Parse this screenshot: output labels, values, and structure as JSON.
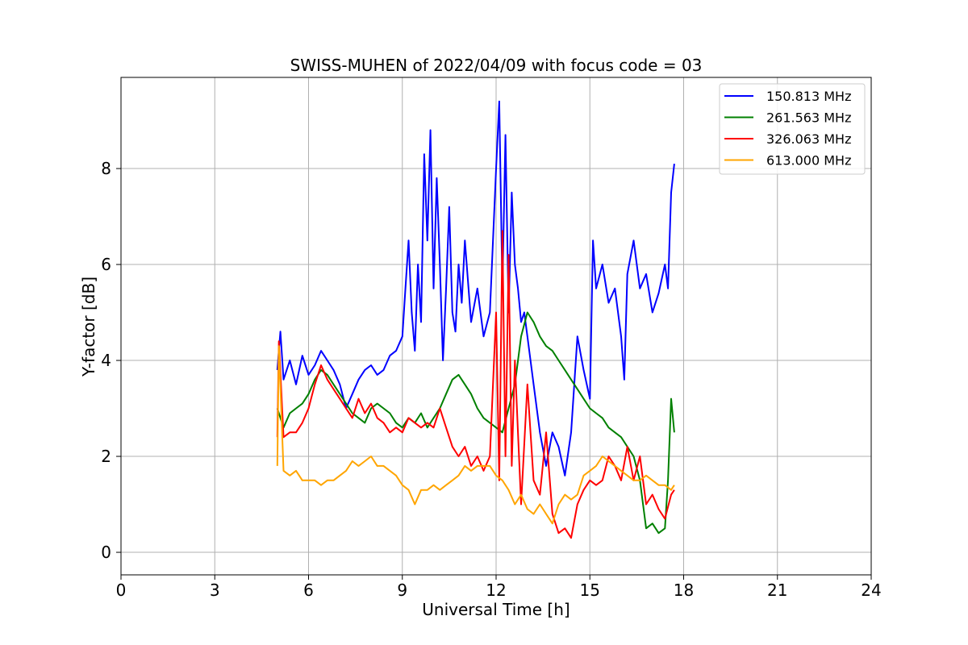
{
  "chart_data": {
    "type": "line",
    "title": "SWISS-MUHEN of 2022/04/09 with focus code = 03",
    "xlabel": "Universal Time [h]",
    "ylabel": "Y-factor [dB]",
    "xlim": [
      0,
      24
    ],
    "ylim": [
      -0.47,
      9.9
    ],
    "xticks": [
      0,
      3,
      6,
      9,
      12,
      15,
      18,
      21,
      24
    ],
    "yticks": [
      0,
      2,
      4,
      6,
      8
    ],
    "grid": true,
    "legend_position": "top-right",
    "series": [
      {
        "name": "150.813 MHz",
        "color": "#0000ff",
        "x": [
          5.0,
          5.1,
          5.2,
          5.4,
          5.6,
          5.8,
          6.0,
          6.2,
          6.4,
          6.6,
          6.8,
          7.0,
          7.2,
          7.4,
          7.6,
          7.8,
          8.0,
          8.2,
          8.4,
          8.6,
          8.8,
          9.0,
          9.1,
          9.2,
          9.3,
          9.4,
          9.5,
          9.6,
          9.7,
          9.8,
          9.9,
          10.0,
          10.1,
          10.2,
          10.3,
          10.4,
          10.5,
          10.6,
          10.7,
          10.8,
          10.9,
          11.0,
          11.2,
          11.4,
          11.6,
          11.8,
          12.0,
          12.1,
          12.2,
          12.3,
          12.4,
          12.5,
          12.6,
          12.7,
          12.8,
          12.9,
          13.0,
          13.2,
          13.4,
          13.6,
          13.8,
          14.0,
          14.2,
          14.4,
          14.6,
          14.8,
          15.0,
          15.1,
          15.2,
          15.4,
          15.6,
          15.8,
          16.0,
          16.1,
          16.2,
          16.4,
          16.6,
          16.8,
          17.0,
          17.2,
          17.4,
          17.5,
          17.6,
          17.7
        ],
        "y": [
          3.8,
          4.6,
          3.6,
          4.0,
          3.5,
          4.1,
          3.7,
          3.9,
          4.2,
          4.0,
          3.8,
          3.5,
          3.0,
          3.3,
          3.6,
          3.8,
          3.9,
          3.7,
          3.8,
          4.1,
          4.2,
          4.5,
          5.5,
          6.5,
          5.0,
          4.2,
          6.0,
          4.8,
          8.3,
          6.5,
          8.8,
          5.5,
          7.8,
          6.0,
          4.0,
          5.5,
          7.2,
          5.0,
          4.6,
          6.0,
          5.2,
          6.5,
          4.8,
          5.5,
          4.5,
          5.0,
          8.0,
          9.4,
          5.5,
          8.7,
          5.0,
          7.5,
          6.0,
          5.5,
          4.8,
          5.0,
          4.5,
          3.5,
          2.5,
          1.8,
          2.5,
          2.2,
          1.6,
          2.5,
          4.5,
          3.8,
          3.2,
          6.5,
          5.5,
          6.0,
          5.2,
          5.5,
          4.5,
          3.6,
          5.8,
          6.5,
          5.5,
          5.8,
          5.0,
          5.4,
          6.0,
          5.5,
          7.5,
          8.1
        ]
      },
      {
        "name": "261.563 MHz",
        "color": "#008000",
        "x": [
          5.0,
          5.2,
          5.4,
          5.6,
          5.8,
          6.0,
          6.2,
          6.4,
          6.6,
          6.8,
          7.0,
          7.2,
          7.4,
          7.6,
          7.8,
          8.0,
          8.2,
          8.4,
          8.6,
          8.8,
          9.0,
          9.2,
          9.4,
          9.6,
          9.8,
          10.0,
          10.2,
          10.4,
          10.6,
          10.8,
          11.0,
          11.2,
          11.4,
          11.6,
          11.8,
          12.0,
          12.2,
          12.4,
          12.6,
          12.8,
          13.0,
          13.2,
          13.4,
          13.6,
          13.8,
          14.0,
          14.2,
          14.4,
          14.6,
          14.8,
          15.0,
          15.2,
          15.4,
          15.6,
          15.8,
          16.0,
          16.2,
          16.4,
          16.6,
          16.8,
          17.0,
          17.2,
          17.4,
          17.5,
          17.6,
          17.7
        ],
        "y": [
          3.0,
          2.6,
          2.9,
          3.0,
          3.1,
          3.3,
          3.6,
          3.8,
          3.7,
          3.5,
          3.3,
          3.1,
          2.9,
          2.8,
          2.7,
          3.0,
          3.1,
          3.0,
          2.9,
          2.7,
          2.6,
          2.8,
          2.7,
          2.9,
          2.6,
          2.8,
          3.0,
          3.3,
          3.6,
          3.7,
          3.5,
          3.3,
          3.0,
          2.8,
          2.7,
          2.6,
          2.5,
          3.0,
          3.5,
          4.5,
          5.0,
          4.8,
          4.5,
          4.3,
          4.2,
          4.0,
          3.8,
          3.6,
          3.4,
          3.2,
          3.0,
          2.9,
          2.8,
          2.6,
          2.5,
          2.4,
          2.2,
          2.0,
          1.5,
          0.5,
          0.6,
          0.4,
          0.5,
          1.5,
          3.2,
          2.5
        ]
      },
      {
        "name": "326.063 MHz",
        "color": "#ff0000",
        "x": [
          5.0,
          5.05,
          5.2,
          5.4,
          5.6,
          5.8,
          6.0,
          6.2,
          6.4,
          6.6,
          6.8,
          7.0,
          7.2,
          7.4,
          7.6,
          7.8,
          8.0,
          8.2,
          8.4,
          8.6,
          8.8,
          9.0,
          9.2,
          9.4,
          9.6,
          9.8,
          10.0,
          10.2,
          10.4,
          10.6,
          10.8,
          11.0,
          11.2,
          11.4,
          11.6,
          11.8,
          12.0,
          12.1,
          12.2,
          12.3,
          12.4,
          12.5,
          12.6,
          12.7,
          12.8,
          13.0,
          13.2,
          13.4,
          13.6,
          13.8,
          14.0,
          14.2,
          14.4,
          14.6,
          14.8,
          15.0,
          15.2,
          15.4,
          15.6,
          15.8,
          16.0,
          16.2,
          16.4,
          16.6,
          16.8,
          17.0,
          17.2,
          17.4,
          17.6,
          17.7
        ],
        "y": [
          2.4,
          4.4,
          2.4,
          2.5,
          2.5,
          2.7,
          3.0,
          3.5,
          3.9,
          3.6,
          3.4,
          3.2,
          3.0,
          2.8,
          3.2,
          2.9,
          3.1,
          2.8,
          2.7,
          2.5,
          2.6,
          2.5,
          2.8,
          2.7,
          2.6,
          2.7,
          2.6,
          3.0,
          2.6,
          2.2,
          2.0,
          2.2,
          1.8,
          2.0,
          1.7,
          2.0,
          5.0,
          1.5,
          6.7,
          2.0,
          6.2,
          1.8,
          4.0,
          2.5,
          1.0,
          3.5,
          1.5,
          1.2,
          2.5,
          0.8,
          0.4,
          0.5,
          0.3,
          1.0,
          1.3,
          1.5,
          1.4,
          1.5,
          2.0,
          1.8,
          1.5,
          2.2,
          1.5,
          2.0,
          1.0,
          1.2,
          0.9,
          0.7,
          1.2,
          1.3
        ]
      },
      {
        "name": "613.000 MHz",
        "color": "#ffa500",
        "x": [
          5.0,
          5.05,
          5.2,
          5.4,
          5.6,
          5.8,
          6.0,
          6.2,
          6.4,
          6.6,
          6.8,
          7.0,
          7.2,
          7.4,
          7.6,
          7.8,
          8.0,
          8.2,
          8.4,
          8.6,
          8.8,
          9.0,
          9.2,
          9.4,
          9.6,
          9.8,
          10.0,
          10.2,
          10.4,
          10.6,
          10.8,
          11.0,
          11.2,
          11.4,
          11.6,
          11.8,
          12.0,
          12.2,
          12.4,
          12.6,
          12.8,
          13.0,
          13.2,
          13.4,
          13.6,
          13.8,
          14.0,
          14.2,
          14.4,
          14.6,
          14.8,
          15.0,
          15.2,
          15.4,
          15.6,
          15.8,
          16.0,
          16.2,
          16.4,
          16.6,
          16.8,
          17.0,
          17.2,
          17.4,
          17.6,
          17.7
        ],
        "y": [
          1.8,
          4.3,
          1.7,
          1.6,
          1.7,
          1.5,
          1.5,
          1.5,
          1.4,
          1.5,
          1.5,
          1.6,
          1.7,
          1.9,
          1.8,
          1.9,
          2.0,
          1.8,
          1.8,
          1.7,
          1.6,
          1.4,
          1.3,
          1.0,
          1.3,
          1.3,
          1.4,
          1.3,
          1.4,
          1.5,
          1.6,
          1.8,
          1.7,
          1.8,
          1.8,
          1.8,
          1.6,
          1.5,
          1.3,
          1.0,
          1.2,
          0.9,
          0.8,
          1.0,
          0.8,
          0.6,
          1.0,
          1.2,
          1.1,
          1.2,
          1.6,
          1.7,
          1.8,
          2.0,
          1.9,
          1.8,
          1.7,
          1.6,
          1.5,
          1.5,
          1.6,
          1.5,
          1.4,
          1.4,
          1.3,
          1.4
        ]
      }
    ]
  }
}
